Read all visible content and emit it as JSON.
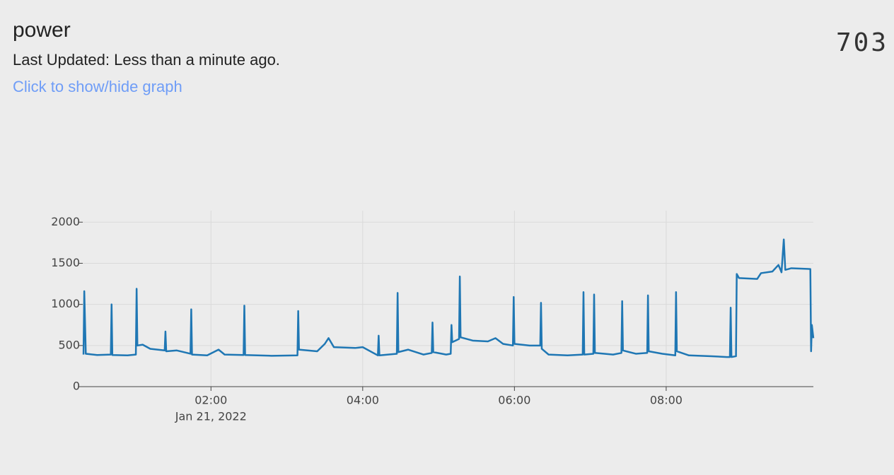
{
  "header": {
    "title": "power",
    "updated": "Last Updated: Less than a minute ago.",
    "toggle": "Click to show/hide graph",
    "current_value": "703"
  },
  "chart_data": {
    "type": "line",
    "x": [
      0.32,
      0.33,
      0.35,
      0.5,
      0.68,
      0.69,
      0.7,
      0.9,
      1.01,
      1.02,
      1.03,
      1.1,
      1.2,
      1.39,
      1.4,
      1.41,
      1.55,
      1.73,
      1.74,
      1.75,
      1.95,
      2.1,
      2.18,
      2.43,
      2.44,
      2.45,
      2.8,
      3.14,
      3.15,
      3.16,
      3.4,
      3.5,
      3.55,
      3.62,
      3.9,
      4.0,
      4.2,
      4.21,
      4.22,
      4.45,
      4.46,
      4.47,
      4.6,
      4.8,
      4.91,
      4.92,
      4.93,
      5.1,
      5.16,
      5.17,
      5.18,
      5.27,
      5.28,
      5.29,
      5.45,
      5.65,
      5.75,
      5.85,
      5.98,
      5.99,
      6.0,
      6.2,
      6.34,
      6.35,
      6.36,
      6.45,
      6.7,
      6.9,
      6.91,
      6.92,
      7.04,
      7.05,
      7.06,
      7.3,
      7.41,
      7.42,
      7.43,
      7.6,
      7.75,
      7.76,
      7.77,
      7.95,
      8.12,
      8.13,
      8.14,
      8.3,
      8.6,
      8.8,
      8.84,
      8.85,
      8.86,
      8.92,
      8.93,
      8.96,
      9.2,
      9.25,
      9.4,
      9.48,
      9.52,
      9.55,
      9.57,
      9.65,
      9.9,
      9.91,
      9.92,
      9.94
    ],
    "series": [
      {
        "name": "power",
        "color": "#1f77b4",
        "values": [
          390,
          1160,
          400,
          385,
          390,
          1000,
          385,
          380,
          390,
          1190,
          500,
          510,
          460,
          440,
          670,
          430,
          440,
          400,
          940,
          390,
          380,
          450,
          390,
          385,
          985,
          385,
          375,
          380,
          920,
          450,
          430,
          520,
          590,
          480,
          470,
          480,
          380,
          620,
          380,
          400,
          1140,
          420,
          450,
          390,
          410,
          780,
          420,
          390,
          400,
          750,
          540,
          580,
          1340,
          600,
          560,
          550,
          590,
          520,
          500,
          1090,
          520,
          500,
          500,
          1020,
          460,
          390,
          380,
          390,
          1150,
          390,
          400,
          1120,
          410,
          390,
          410,
          1040,
          440,
          400,
          410,
          1110,
          430,
          400,
          380,
          1150,
          430,
          380,
          370,
          360,
          360,
          960,
          360,
          370,
          1370,
          1320,
          1310,
          1380,
          1400,
          1480,
          1390,
          1790,
          1420,
          1440,
          1430,
          430,
          750,
          590
        ]
      }
    ],
    "xlim": [
      0.31,
      9.94
    ],
    "xticks": [
      {
        "value": 2,
        "label": "02:00",
        "sublabel": "Jan 21, 2022"
      },
      {
        "value": 4,
        "label": "04:00"
      },
      {
        "value": 6,
        "label": "06:00"
      },
      {
        "value": 8,
        "label": "08:00"
      }
    ],
    "ylim": [
      0,
      2140
    ],
    "yticks": [
      0,
      500,
      1000,
      1500,
      2000
    ],
    "grid": true
  }
}
